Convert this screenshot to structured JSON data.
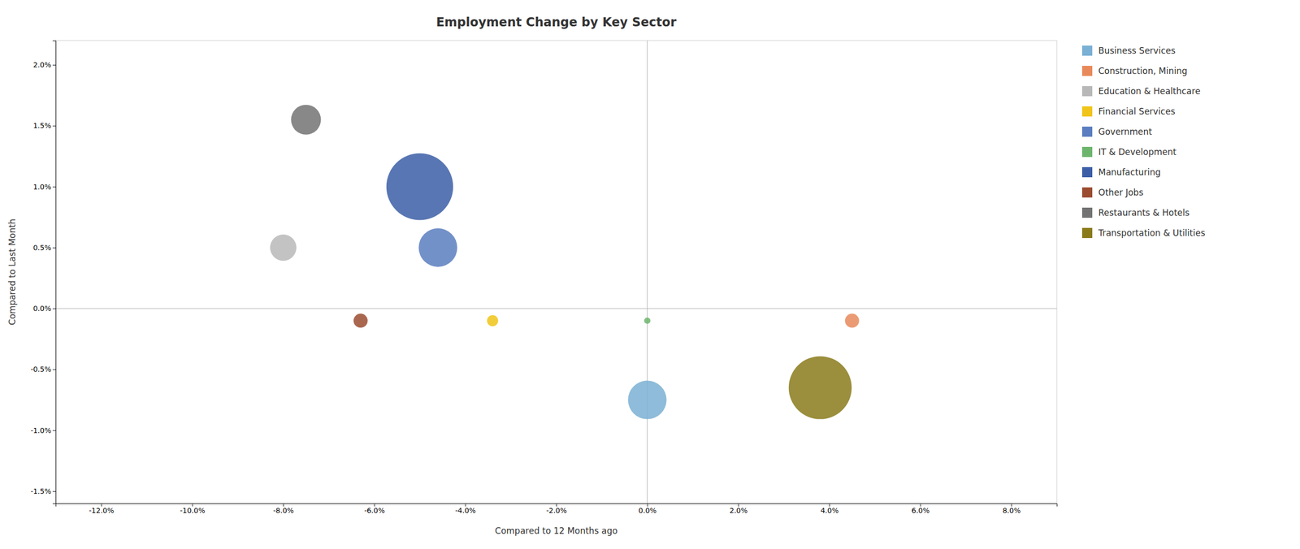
{
  "chart_data": {
    "type": "scatter",
    "title": "Employment Change by Key Sector",
    "xlabel": "Compared to 12 Months ago",
    "ylabel": "Compared to Last Month",
    "xlim": [
      -0.13,
      0.09
    ],
    "ylim": [
      -0.016,
      0.022
    ],
    "xticks": [
      {
        "value": -0.12,
        "label": "-12.0%"
      },
      {
        "value": -0.1,
        "label": "-10.0%"
      },
      {
        "value": -0.08,
        "label": "-8.0%"
      },
      {
        "value": -0.06,
        "label": "-6.0%"
      },
      {
        "value": -0.04,
        "label": "-4.0%"
      },
      {
        "value": -0.02,
        "label": "-2.0%"
      },
      {
        "value": 0.0,
        "label": "0.0%"
      },
      {
        "value": 0.02,
        "label": "2.0%"
      },
      {
        "value": 0.04,
        "label": "4.0%"
      },
      {
        "value": 0.06,
        "label": "6.0%"
      },
      {
        "value": 0.08,
        "label": "8.0%"
      }
    ],
    "yticks": [
      {
        "value": -0.015,
        "label": "-1.5%"
      },
      {
        "value": -0.01,
        "label": "-1.0%"
      },
      {
        "value": -0.005,
        "label": "-0.5%"
      },
      {
        "value": 0.0,
        "label": "0.0%"
      },
      {
        "value": 0.005,
        "label": "0.5%"
      },
      {
        "value": 0.01,
        "label": "1.0%"
      },
      {
        "value": 0.015,
        "label": "1.5%"
      },
      {
        "value": 0.02,
        "label": "2.0%"
      }
    ],
    "grid": false,
    "legend": "right",
    "series": [
      {
        "name": "Business Services",
        "color": "#7ab0d4",
        "x": [
          0.0
        ],
        "values": [
          -0.0075
        ],
        "sizes": [
          3000
        ]
      },
      {
        "name": "Construction, Mining",
        "color": "#e8895a",
        "x": [
          0.045
        ],
        "values": [
          -0.001
        ],
        "sizes": [
          400
        ]
      },
      {
        "name": "Education & Healthcare",
        "color": "#b8b8b8",
        "x": [
          -0.08
        ],
        "values": [
          0.005
        ],
        "sizes": [
          1400
        ]
      },
      {
        "name": "Financial Services",
        "color": "#f0c419",
        "x": [
          -0.034
        ],
        "values": [
          -0.001
        ],
        "sizes": [
          250
        ]
      },
      {
        "name": "Government",
        "color": "#5a7ec0",
        "x": [
          -0.046
        ],
        "values": [
          0.005
        ],
        "sizes": [
          3000
        ]
      },
      {
        "name": "IT & Development",
        "color": "#6db56d",
        "x": [
          0.0
        ],
        "values": [
          -0.001
        ],
        "sizes": [
          80
        ]
      },
      {
        "name": "Manufacturing",
        "color": "#3b5ea6",
        "x": [
          -0.05
        ],
        "values": [
          0.01
        ],
        "sizes": [
          9000
        ]
      },
      {
        "name": "Other Jobs",
        "color": "#9b4c30",
        "x": [
          -0.063
        ],
        "values": [
          -0.001
        ],
        "sizes": [
          400
        ]
      },
      {
        "name": "Restaurants & Hotels",
        "color": "#737373",
        "x": [
          -0.075
        ],
        "values": [
          0.0155
        ],
        "sizes": [
          1800
        ]
      },
      {
        "name": "Transportation & Utilities",
        "color": "#8a7a1a",
        "x": [
          0.038
        ],
        "values": [
          -0.0065
        ],
        "sizes": [
          8000
        ]
      }
    ]
  }
}
